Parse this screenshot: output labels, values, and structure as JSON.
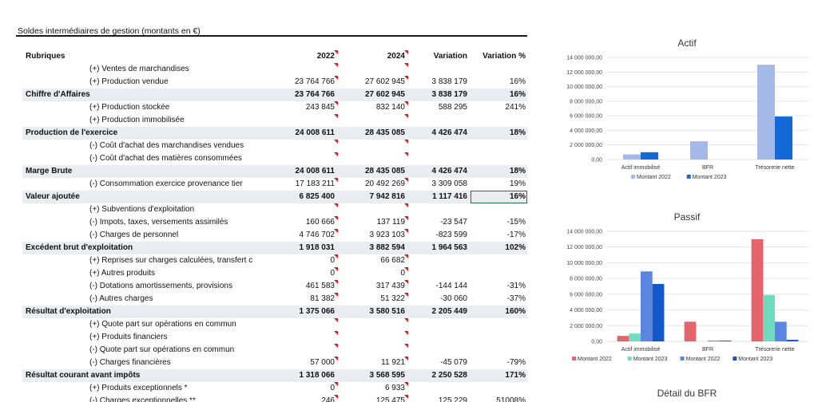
{
  "sheet_title": "Soldes intermédiaires de gestion (montants en €)",
  "table": {
    "headers": [
      "Rubriques",
      "2022",
      "2024",
      "Variation",
      "Variation %"
    ],
    "rows": [
      {
        "label": "(+) Ventes de marchandises",
        "type": "sub",
        "v": [
          "",
          "",
          "",
          ""
        ],
        "flags": [
          true,
          true
        ]
      },
      {
        "label": "(+) Production vendue",
        "type": "sub",
        "v": [
          "23 764 766",
          "27 602 945",
          "3 838 179",
          "16%"
        ],
        "flags": [
          true,
          true
        ]
      },
      {
        "label": "Chiffre d'Affaires",
        "type": "highlight",
        "v": [
          "23 764 766",
          "27 602 945",
          "3 838 179",
          "16%"
        ],
        "flags": [
          false,
          false
        ]
      },
      {
        "label": "(+) Production stockée",
        "type": "sub",
        "v": [
          "243 845",
          "832 140",
          "588 295",
          "241%"
        ],
        "flags": [
          true,
          true
        ]
      },
      {
        "label": "(+) Production immobilisée",
        "type": "sub",
        "v": [
          "",
          "",
          "",
          ""
        ],
        "flags": [
          true,
          true
        ]
      },
      {
        "label": "Production de l'exercice",
        "type": "highlight",
        "v": [
          "24 008 611",
          "28 435 085",
          "4 426 474",
          "18%"
        ],
        "flags": [
          false,
          false
        ]
      },
      {
        "label": "(-) Coût d'achat des marchandises vendues",
        "type": "sub",
        "v": [
          "",
          "",
          "",
          ""
        ],
        "flags": [
          true,
          true
        ]
      },
      {
        "label": "(-) Coût d'achat des matières consommées",
        "type": "sub",
        "v": [
          "",
          "",
          "",
          ""
        ],
        "flags": [
          true,
          true
        ]
      },
      {
        "label": "Marge Brute",
        "type": "highlight",
        "v": [
          "24 008 611",
          "28 435 085",
          "4 426 474",
          "18%"
        ],
        "flags": [
          false,
          false
        ]
      },
      {
        "label": "(-) Consommation exercice provenance tier",
        "type": "sub",
        "v": [
          "17 183 211",
          "20 492 269",
          "3 309 058",
          "19%"
        ],
        "flags": [
          true,
          true
        ]
      },
      {
        "label": "Valeur ajoutée",
        "type": "highlight",
        "v": [
          "6 825 400",
          "7 942 816",
          "1 117 416",
          "16%"
        ],
        "flags": [
          false,
          false
        ],
        "selected": true
      },
      {
        "label": "(+) Subventions d'exploitation",
        "type": "sub",
        "v": [
          "",
          "",
          "",
          ""
        ],
        "flags": [
          true,
          true
        ]
      },
      {
        "label": "(-) Impots, taxes, versements assimilés",
        "type": "sub",
        "v": [
          "160 666",
          "137 119",
          "-23 547",
          "-15%"
        ],
        "flags": [
          true,
          true
        ]
      },
      {
        "label": "(-) Charges de personnel",
        "type": "sub",
        "v": [
          "4 746 702",
          "3 923 103",
          "-823 599",
          "-17%"
        ],
        "flags": [
          true,
          true
        ]
      },
      {
        "label": "Excédent brut d'exploitation",
        "type": "highlight",
        "v": [
          "1 918 031",
          "3 882 594",
          "1 964 563",
          "102%"
        ],
        "flags": [
          false,
          false
        ]
      },
      {
        "label": "(+) Reprises sur charges calculées, transfert c",
        "type": "sub",
        "v": [
          "0",
          "66 682",
          "",
          ""
        ],
        "flags": [
          true,
          true
        ]
      },
      {
        "label": "(+) Autres produits",
        "type": "sub",
        "v": [
          "0",
          "0",
          "",
          ""
        ],
        "flags": [
          true,
          true
        ]
      },
      {
        "label": "(-) Dotations amortissements, provisions",
        "type": "sub",
        "v": [
          "461 583",
          "317 439",
          "-144 144",
          "-31%"
        ],
        "flags": [
          true,
          true
        ]
      },
      {
        "label": "(-) Autres charges",
        "type": "sub",
        "v": [
          "81 382",
          "51 322",
          "-30 060",
          "-37%"
        ],
        "flags": [
          true,
          true
        ]
      },
      {
        "label": "Résultat d'exploitation",
        "type": "highlight",
        "v": [
          "1 375 066",
          "3 580 516",
          "2 205 449",
          "160%"
        ],
        "flags": [
          false,
          false
        ]
      },
      {
        "label": "(+) Quote part sur opérations en commun",
        "type": "sub",
        "v": [
          "",
          "",
          "",
          ""
        ],
        "flags": [
          true,
          true
        ]
      },
      {
        "label": "(+) Produits financiers",
        "type": "sub",
        "v": [
          "",
          "",
          "",
          ""
        ],
        "flags": [
          true,
          true
        ]
      },
      {
        "label": "(-) Quote part sur opérations en commun",
        "type": "sub",
        "v": [
          "",
          "",
          "",
          ""
        ],
        "flags": [
          true,
          true
        ]
      },
      {
        "label": "(-) Charges financières",
        "type": "sub",
        "v": [
          "57 000",
          "11 921",
          "-45 079",
          "-79%"
        ],
        "flags": [
          true,
          true
        ]
      },
      {
        "label": "Résultat courant avant impôts",
        "type": "highlight",
        "v": [
          "1 318 066",
          "3 568 595",
          "2 250 528",
          "171%"
        ],
        "flags": [
          false,
          false
        ]
      },
      {
        "label": "(+) Produits exceptionnels *",
        "type": "sub",
        "v": [
          "0",
          "6 933",
          "",
          ""
        ],
        "flags": [
          true,
          true
        ]
      },
      {
        "label": "(-) Charges exceptionnelles **",
        "type": "sub",
        "v": [
          "246",
          "125 475",
          "125 229",
          "51008%"
        ],
        "flags": [
          true,
          true
        ]
      }
    ]
  },
  "chart_data": [
    {
      "type": "bar",
      "title": "Actif",
      "categories": [
        "Actif immobilisé",
        "BFR",
        "Trésorerie nette"
      ],
      "ylim": [
        0,
        14000000
      ],
      "yticks": [
        "0,00",
        "2 000 000,00",
        "4 000 000,00",
        "6 000 000,00",
        "8 000 000,00",
        "10 000 000,00",
        "12 000 000,00",
        "14 000 000,00"
      ],
      "series": [
        {
          "name": "Montant  2022",
          "color": "#a4b9e8",
          "values": [
            700000,
            2500000,
            13000000
          ]
        },
        {
          "name": "Montant 2023",
          "color": "#1469d9",
          "values": [
            1000000,
            0,
            5900000
          ]
        }
      ],
      "legend": "bottom"
    },
    {
      "type": "bar",
      "title": "Passif",
      "categories": [
        "Actif immobilisé",
        "BFR",
        "Trésorerie nette"
      ],
      "ylim": [
        0,
        14000000
      ],
      "yticks": [
        "0,00",
        "2 000 000,00",
        "4 000 000,00",
        "6 000 000,00",
        "8 000 000,00",
        "10 000 000,00",
        "12 000 000,00",
        "14 000 000,00"
      ],
      "series": [
        {
          "name": "Montant  2022",
          "color": "#e5646c",
          "values": [
            700000,
            2500000,
            13000000
          ]
        },
        {
          "name": "Montant 2023",
          "color": "#6fdcc0",
          "values": [
            1000000,
            0,
            5900000
          ]
        },
        {
          "name": "Montant 2022",
          "color": "#5b86e0",
          "values": [
            8900000,
            100000,
            2500000
          ]
        },
        {
          "name": "Montant 2023",
          "color": "#1457c8",
          "values": [
            7300000,
            100000,
            200000
          ]
        }
      ],
      "legend": "bottom"
    }
  ],
  "chart3_title": "Détail du BFR"
}
